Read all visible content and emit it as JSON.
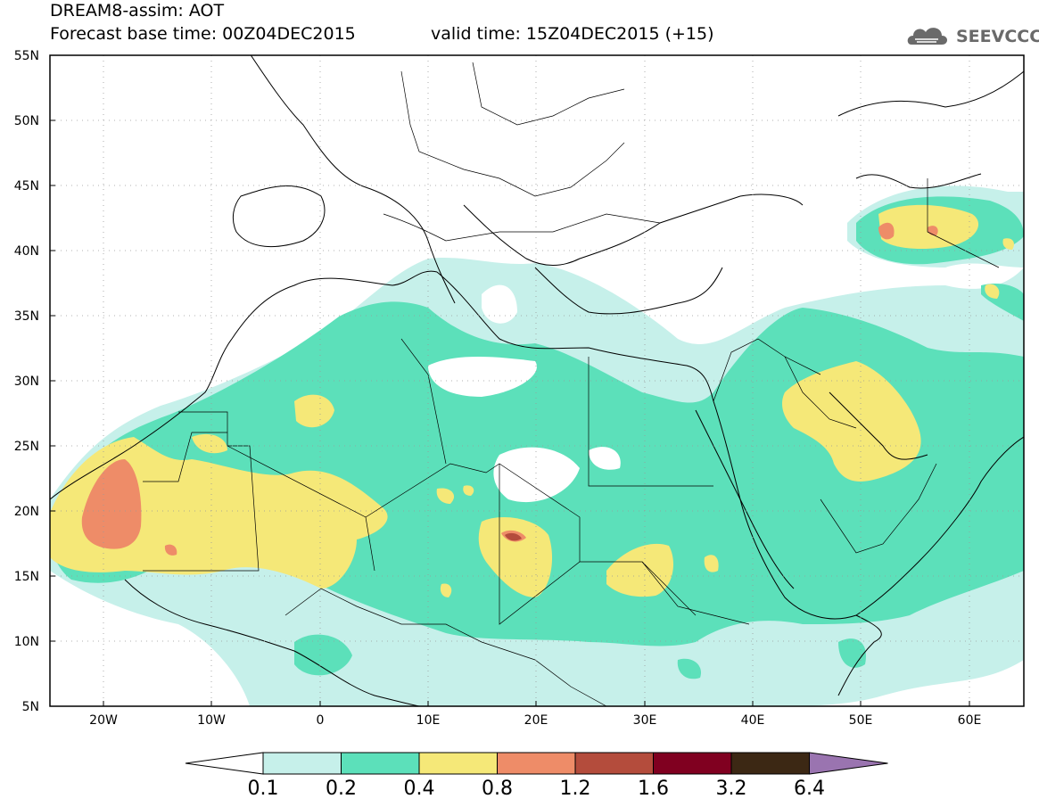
{
  "header": {
    "title": "DREAM8-assim: AOT",
    "base_time": "Forecast base time: 00Z04DEC2015",
    "valid_time": "valid time: 15Z04DEC2015 (+15)",
    "logo_text": "SEEVCCC"
  },
  "map": {
    "lat_labels": [
      "55N",
      "50N",
      "45N",
      "40N",
      "35N",
      "30N",
      "25N",
      "20N",
      "15N",
      "10N",
      "5N"
    ],
    "lon_labels": [
      "20W",
      "10W",
      "0",
      "10E",
      "20E",
      "30E",
      "40E",
      "50E",
      "60E"
    ],
    "lat_range": [
      5,
      55
    ],
    "lon_range": [
      -25,
      65
    ]
  },
  "colorbar": {
    "labels": [
      "0.1",
      "0.2",
      "0.4",
      "0.8",
      "1.2",
      "1.6",
      "3.2",
      "6.4"
    ],
    "colors": [
      "#ffffff",
      "#c6f0ea",
      "#5ce0ba",
      "#f5e878",
      "#ee8c68",
      "#b44c3c",
      "#800020",
      "#3c2814",
      "#9a74b0"
    ]
  }
}
